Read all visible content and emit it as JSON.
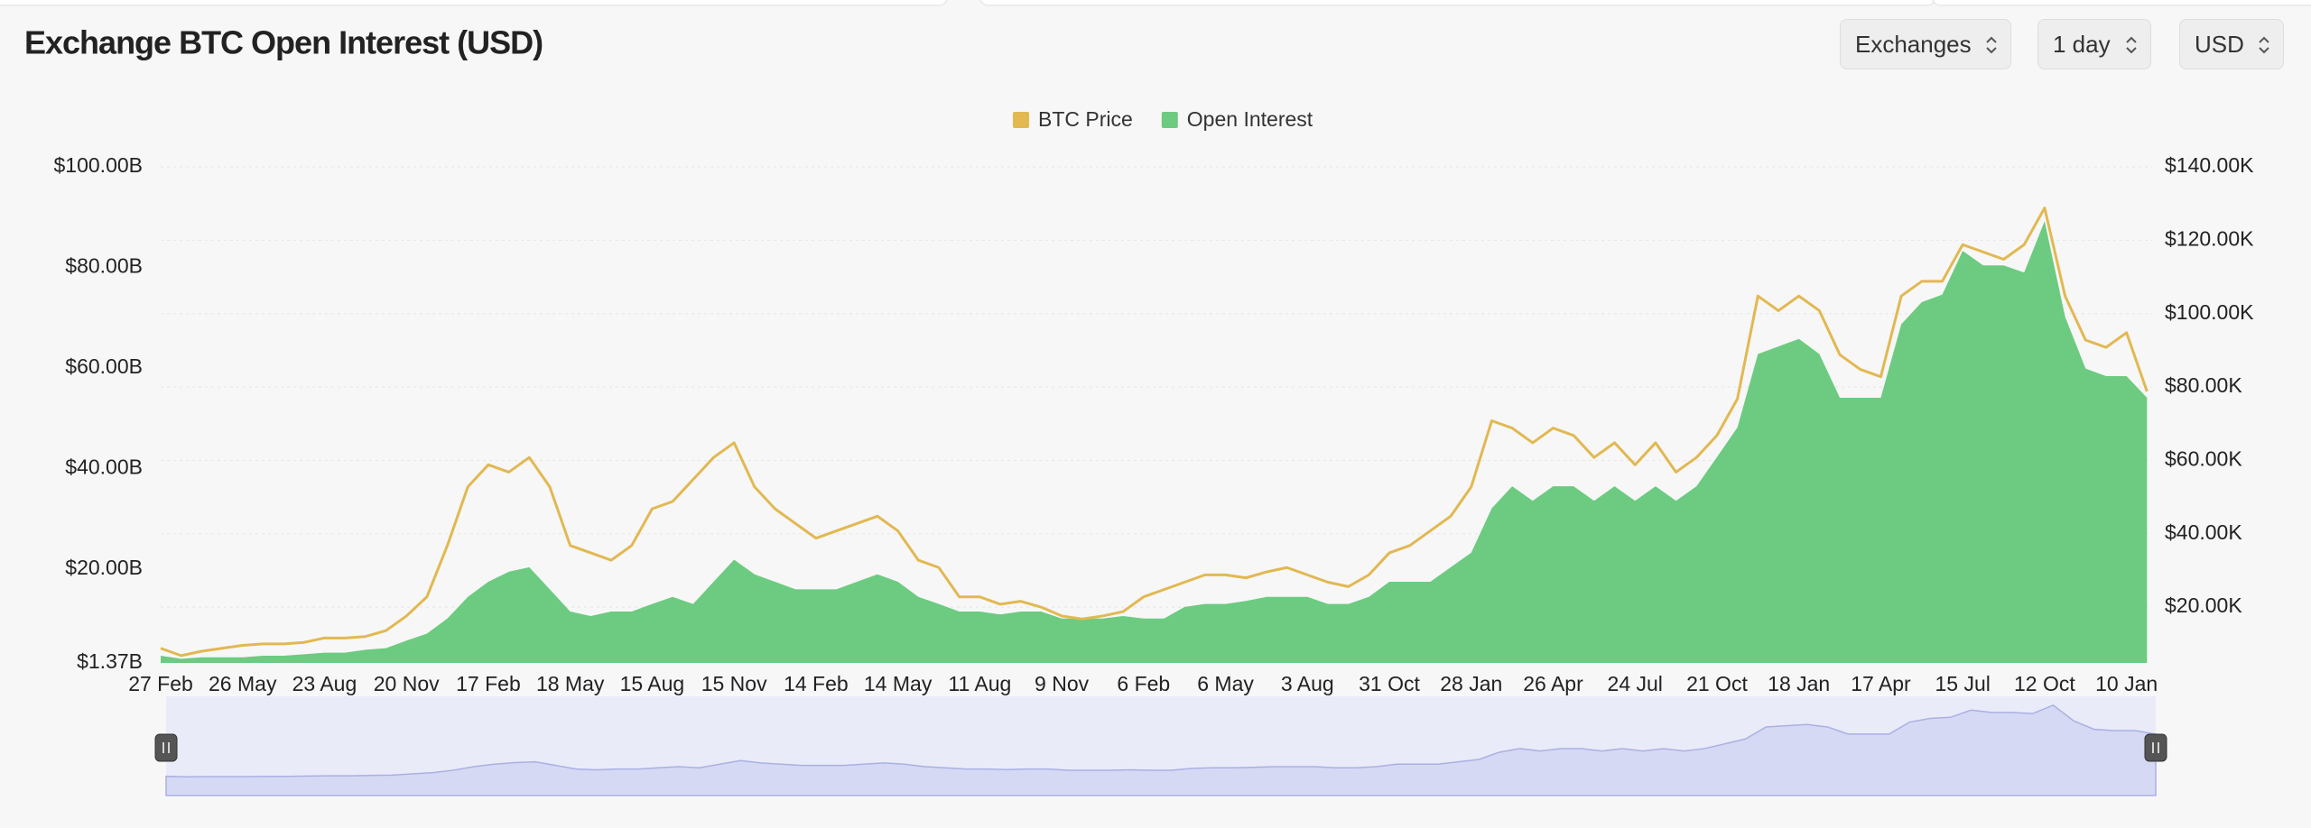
{
  "controls": [
    "Exchanges",
    "1 day",
    "USD"
  ],
  "chart_data": {
    "type": "combo",
    "title": "Exchange BTC Open Interest (USD)",
    "categories": [
      "27 Feb",
      null,
      null,
      null,
      "26 May",
      null,
      null,
      null,
      "23 Aug",
      null,
      null,
      null,
      "20 Nov",
      null,
      null,
      null,
      "17 Feb",
      null,
      null,
      null,
      "18 May",
      null,
      null,
      null,
      "15 Aug",
      null,
      null,
      null,
      "15 Nov",
      null,
      null,
      null,
      "14 Feb",
      null,
      null,
      null,
      "14 May",
      null,
      null,
      null,
      "11 Aug",
      null,
      null,
      null,
      "9 Nov",
      null,
      null,
      null,
      "6 Feb",
      null,
      null,
      null,
      "6 May",
      null,
      null,
      null,
      "3 Aug",
      null,
      null,
      null,
      "31 Oct",
      null,
      null,
      null,
      "28 Jan",
      null,
      null,
      null,
      "26 Apr",
      null,
      null,
      null,
      "24 Jul",
      null,
      null,
      null,
      "21 Oct",
      null,
      null,
      null,
      "18 Jan",
      null,
      null,
      null,
      "17 Apr",
      null,
      null,
      null,
      "15 Jul",
      null,
      null,
      null,
      "12 Oct",
      null,
      null,
      null,
      "10 Jan",
      null
    ],
    "series": [
      {
        "name": "BTC Price",
        "color": "#e2b851",
        "type": "line",
        "axis": "y2",
        "values": [
          8.8,
          6.8,
          8.0,
          8.8,
          9.6,
          10.0,
          10.0,
          10.4,
          11.6,
          11.6,
          12.0,
          13.6,
          17.6,
          22.8,
          36.8,
          52.8,
          58.8,
          56.8,
          60.8,
          52.8,
          36.8,
          34.8,
          32.8,
          36.8,
          46.8,
          48.8,
          54.8,
          60.8,
          64.8,
          52.8,
          46.8,
          42.8,
          38.8,
          40.8,
          42.8,
          44.8,
          40.8,
          32.8,
          30.8,
          22.8,
          22.8,
          20.8,
          21.6,
          20.0,
          17.6,
          16.8,
          17.6,
          18.8,
          22.8,
          24.8,
          26.8,
          28.8,
          28.8,
          28.0,
          29.6,
          30.8,
          28.8,
          26.8,
          25.6,
          28.8,
          34.8,
          36.8,
          40.8,
          44.8,
          52.8,
          70.8,
          68.8,
          64.8,
          68.8,
          66.8,
          60.8,
          64.8,
          58.8,
          64.8,
          56.8,
          60.8,
          66.8,
          76.8,
          104.8,
          100.8,
          104.8,
          100.8,
          88.8,
          84.8,
          82.8,
          104.8,
          108.8,
          108.8,
          118.8,
          116.8,
          114.8,
          118.8,
          128.8,
          104.8,
          92.8,
          90.8,
          94.8,
          78.8
        ]
      },
      {
        "name": "Open Interest",
        "color": "#6ccb80",
        "type": "area",
        "values": [
          2.8,
          2.2,
          2.5,
          2.5,
          2.5,
          2.8,
          2.8,
          3.1,
          3.4,
          3.4,
          4.0,
          4.3,
          5.8,
          7.2,
          10.2,
          14.5,
          17.5,
          19.5,
          20.4,
          16.0,
          11.6,
          10.7,
          11.6,
          11.6,
          13.1,
          14.5,
          13.1,
          17.5,
          21.9,
          19.0,
          17.5,
          16.0,
          16.0,
          16.0,
          17.5,
          19.0,
          17.5,
          14.5,
          13.1,
          11.6,
          11.6,
          11.0,
          11.6,
          11.6,
          10.2,
          10.2,
          10.2,
          10.7,
          10.2,
          10.2,
          12.5,
          13.1,
          13.1,
          13.7,
          14.5,
          14.5,
          14.5,
          13.1,
          13.1,
          14.5,
          17.5,
          17.5,
          17.5,
          20.4,
          23.3,
          32.1,
          36.5,
          33.6,
          36.5,
          36.5,
          33.6,
          36.5,
          33.6,
          36.5,
          33.6,
          36.5,
          42.3,
          48.2,
          62.8,
          64.3,
          65.8,
          62.8,
          54.1,
          54.1,
          54.1,
          68.7,
          73.1,
          74.6,
          83.3,
          80.4,
          80.4,
          79.0,
          89.2,
          70.2,
          59.9,
          58.4,
          58.4,
          54.1
        ]
      }
    ],
    "ylim": [
      1.37,
      100
    ],
    "yticks": [
      {
        "value": 1.37,
        "label": "$1.37B"
      },
      {
        "value": 20,
        "label": "$20.00B"
      },
      {
        "value": 40,
        "label": "$40.00B"
      },
      {
        "value": 60,
        "label": "$60.00B"
      },
      {
        "value": 80,
        "label": "$80.00B"
      },
      {
        "value": 100,
        "label": "$100.00B"
      }
    ],
    "y2lim": [
      4.8,
      140
    ],
    "y2ticks": [
      {
        "value": 20,
        "label": "$20.00K"
      },
      {
        "value": 40,
        "label": "$40.00K"
      },
      {
        "value": 60,
        "label": "$60.00K"
      },
      {
        "value": 80,
        "label": "$80.00K"
      },
      {
        "value": 100,
        "label": "$100.00K"
      },
      {
        "value": 120,
        "label": "$120.00K"
      },
      {
        "value": 140,
        "label": "$140.00K"
      }
    ],
    "grid": true,
    "legend": "top"
  }
}
